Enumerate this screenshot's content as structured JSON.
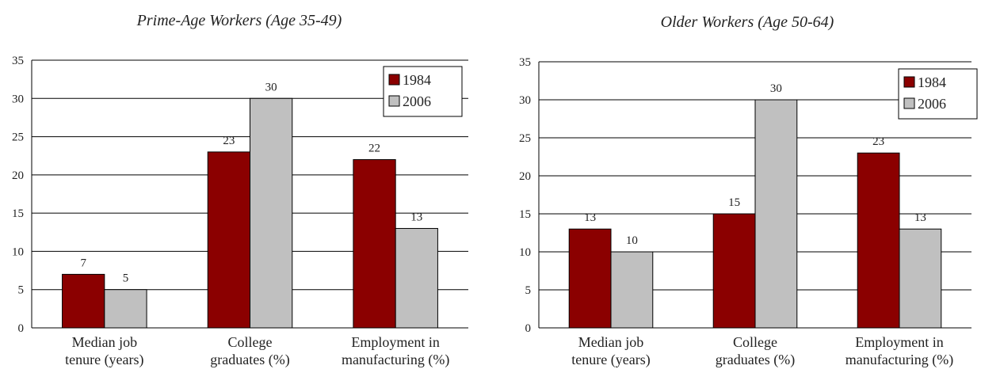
{
  "chart_data": [
    {
      "type": "bar",
      "title": "Prime-Age Workers (Age 35-49)",
      "xlabel": "",
      "ylabel": "",
      "categories": [
        [
          "Median job",
          "tenure (years)"
        ],
        [
          "College",
          "graduates (%)"
        ],
        [
          "Employment in",
          "manufacturing (%)"
        ]
      ],
      "series": [
        {
          "name": "1984",
          "color": "#8b0000",
          "values": [
            7,
            23,
            22
          ]
        },
        {
          "name": "2006",
          "color": "#c0c0c0",
          "values": [
            5,
            30,
            13
          ]
        }
      ],
      "ylim": [
        0,
        35
      ],
      "yticks": [
        0,
        5,
        10,
        15,
        20,
        25,
        30,
        35
      ],
      "grid": true,
      "legend": "top-right"
    },
    {
      "type": "bar",
      "title": "Older Workers (Age 50-64)",
      "xlabel": "",
      "ylabel": "",
      "categories": [
        [
          "Median job",
          "tenure (years)"
        ],
        [
          "College",
          "graduates (%)"
        ],
        [
          "Employment in",
          "manufacturing (%)"
        ]
      ],
      "series": [
        {
          "name": "1984",
          "color": "#8b0000",
          "values": [
            13,
            15,
            23
          ]
        },
        {
          "name": "2006",
          "color": "#c0c0c0",
          "values": [
            10,
            30,
            13
          ]
        }
      ],
      "ylim": [
        0,
        35
      ],
      "yticks": [
        0,
        5,
        10,
        15,
        20,
        25,
        30,
        35
      ],
      "grid": true,
      "legend": "top-right"
    }
  ]
}
